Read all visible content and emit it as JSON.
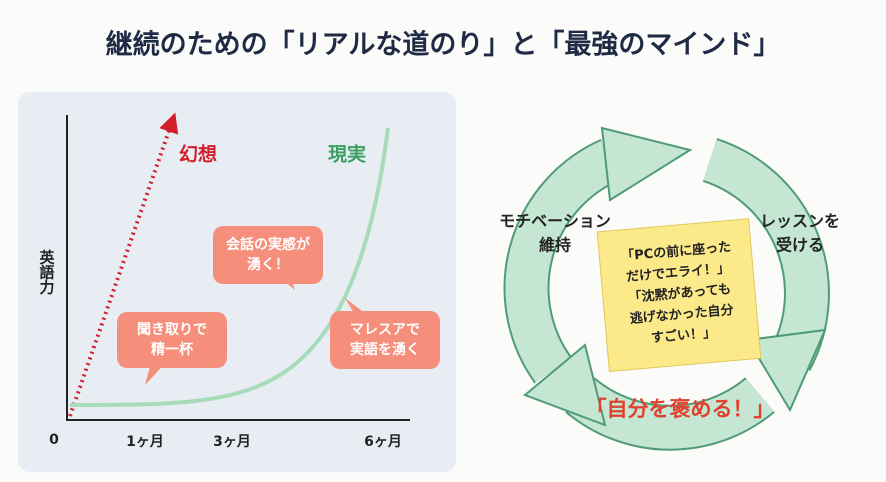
{
  "title": "継続のための「リアルな道のり」と「最強のマインド」",
  "graph": {
    "y_label": "英語力",
    "origin": "0",
    "x_labels": [
      "1ヶ月",
      "3ヶ月",
      "6ヶ月"
    ],
    "fantasy": "幻想",
    "reality": "現実",
    "bubbles": [
      [
        "会話の実感が",
        "湧く！"
      ],
      [
        "聞き取りで",
        "精一杯"
      ],
      [
        "マレスアで",
        "実語を湧く"
      ]
    ]
  },
  "cycle": {
    "nodes": [
      [
        "モチベーション",
        "維持"
      ],
      [
        "レッスンを",
        "受ける"
      ]
    ],
    "note": [
      "「PCの前に座った",
      "だけでエライ！」",
      "「沈黙があっても",
      "逃げなかった自分",
      "すごい！」"
    ],
    "center": "「自分を褒める！」"
  }
}
